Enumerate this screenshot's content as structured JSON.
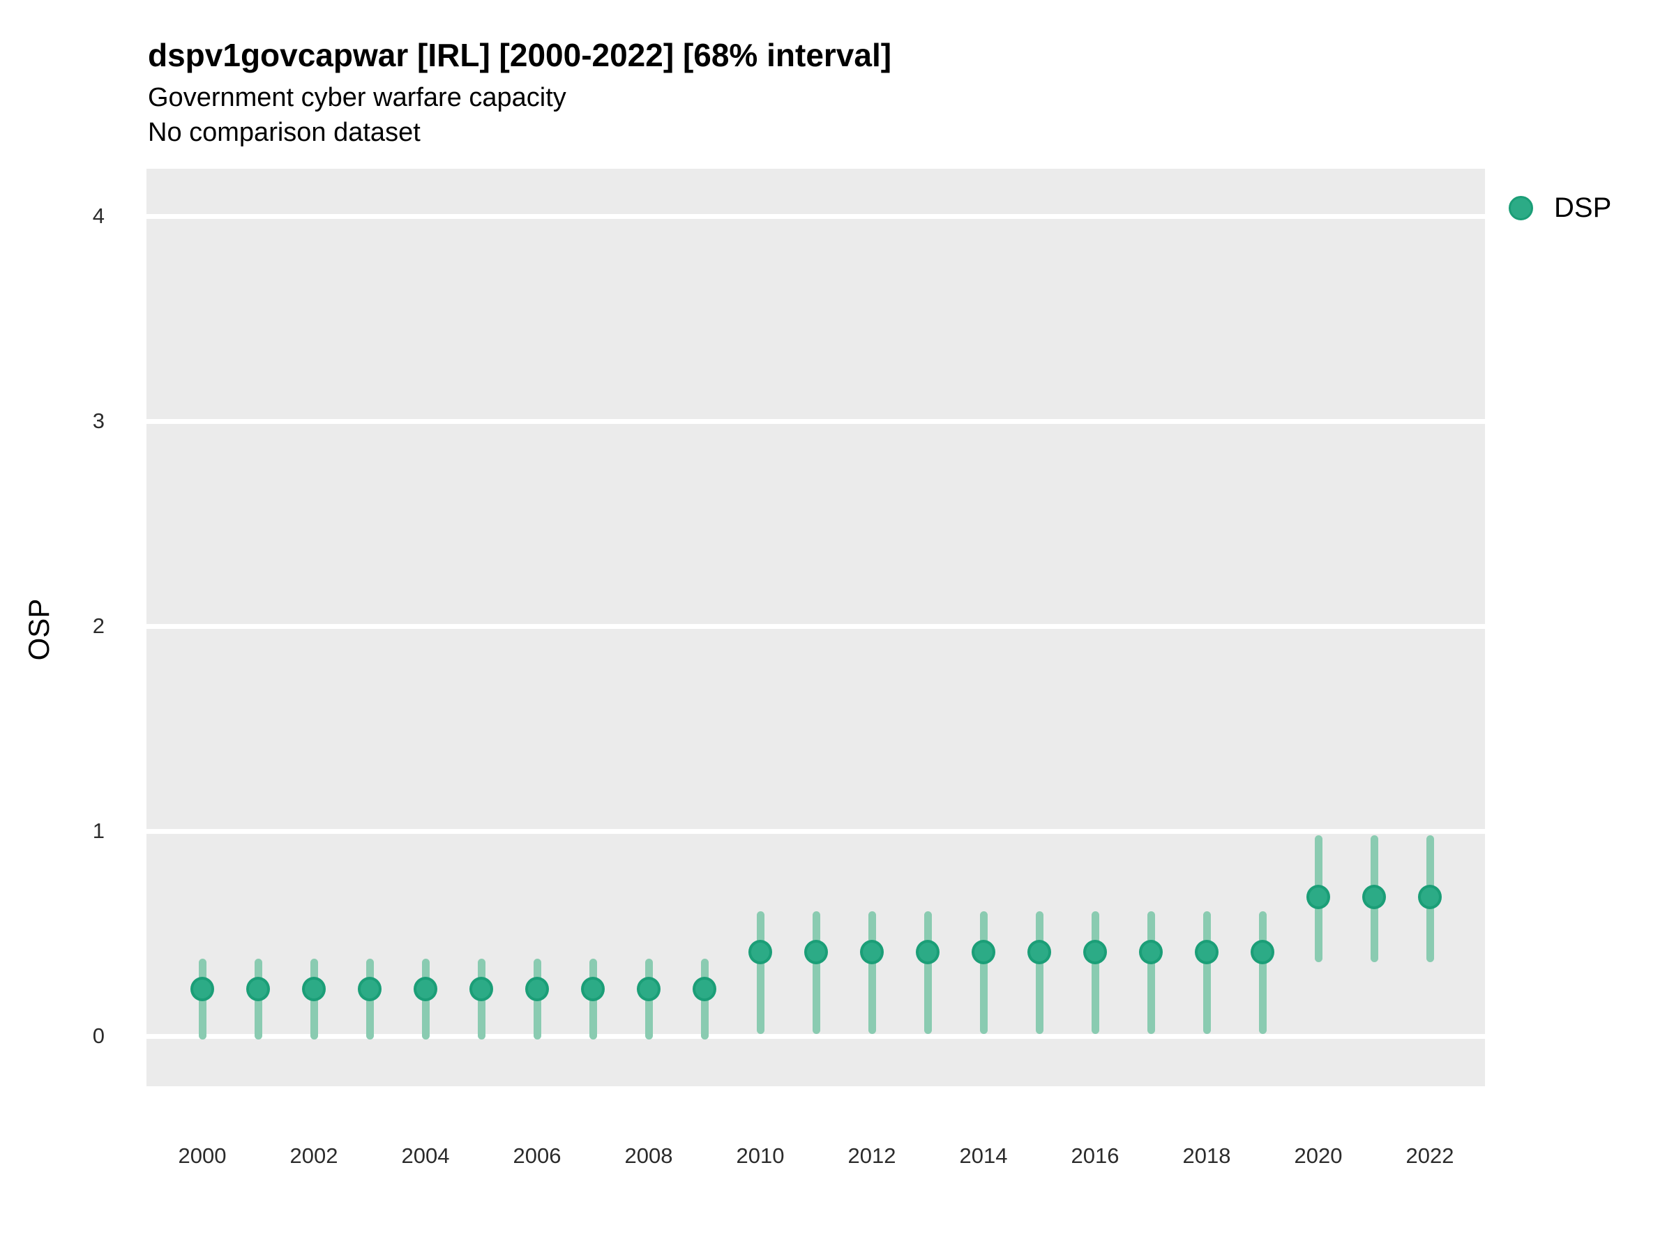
{
  "header": {
    "title": "dspv1govcapwar [IRL] [2000-2022] [68% interval]",
    "subtitle": "Government cyber warfare capacity",
    "comparison_note": "No comparison dataset"
  },
  "axes": {
    "y_title": "OSP",
    "y_ticks": [
      0,
      1,
      2,
      3,
      4
    ],
    "x_ticks": [
      2000,
      2002,
      2004,
      2006,
      2008,
      2010,
      2012,
      2014,
      2016,
      2018,
      2020,
      2022
    ]
  },
  "legend": {
    "entries": [
      {
        "label": "DSP",
        "color": "#2CAB86"
      }
    ]
  },
  "chart_data": {
    "type": "pointrange",
    "title": "dspv1govcapwar [IRL] [2000-2022] [68% interval]",
    "subtitle": [
      "Government cyber warfare capacity",
      "No comparison dataset"
    ],
    "interval": "68%",
    "xlabel": "",
    "ylabel": "OSP",
    "ylim": [
      -0.25,
      4.45
    ],
    "yticks": [
      0,
      1,
      2,
      3,
      4
    ],
    "xticks": [
      2000,
      2002,
      2004,
      2006,
      2008,
      2010,
      2012,
      2014,
      2016,
      2018,
      2020,
      2022
    ],
    "grid": "major-horizontal-white-on-grey",
    "legend_position": "right",
    "x": [
      2000,
      2001,
      2002,
      2003,
      2004,
      2005,
      2006,
      2007,
      2008,
      2009,
      2010,
      2011,
      2012,
      2013,
      2014,
      2015,
      2016,
      2017,
      2018,
      2019,
      2020,
      2021,
      2022
    ],
    "series": [
      {
        "name": "DSP",
        "points": [
          0.23,
          0.23,
          0.23,
          0.23,
          0.23,
          0.23,
          0.23,
          0.23,
          0.23,
          0.23,
          0.41,
          0.41,
          0.41,
          0.41,
          0.41,
          0.41,
          0.41,
          0.41,
          0.41,
          0.41,
          0.68,
          0.68,
          0.68
        ],
        "lower": [
          0.0,
          0.0,
          0.0,
          0.0,
          0.0,
          0.0,
          0.0,
          0.0,
          0.0,
          0.0,
          0.03,
          0.03,
          0.03,
          0.03,
          0.03,
          0.03,
          0.03,
          0.03,
          0.03,
          0.03,
          0.38,
          0.38,
          0.38
        ],
        "upper": [
          0.36,
          0.36,
          0.36,
          0.36,
          0.36,
          0.36,
          0.36,
          0.36,
          0.36,
          0.36,
          0.59,
          0.59,
          0.59,
          0.59,
          0.59,
          0.59,
          0.59,
          0.59,
          0.59,
          0.59,
          0.96,
          0.96,
          0.96
        ]
      }
    ],
    "colors": {
      "point_fill": "#2CAB86",
      "point_ring": "#1B9E77",
      "interval_bar": "#8ACBB1",
      "panel_background": "#EBEBEB",
      "gridline": "#FFFFFF",
      "text": "#000000"
    }
  }
}
